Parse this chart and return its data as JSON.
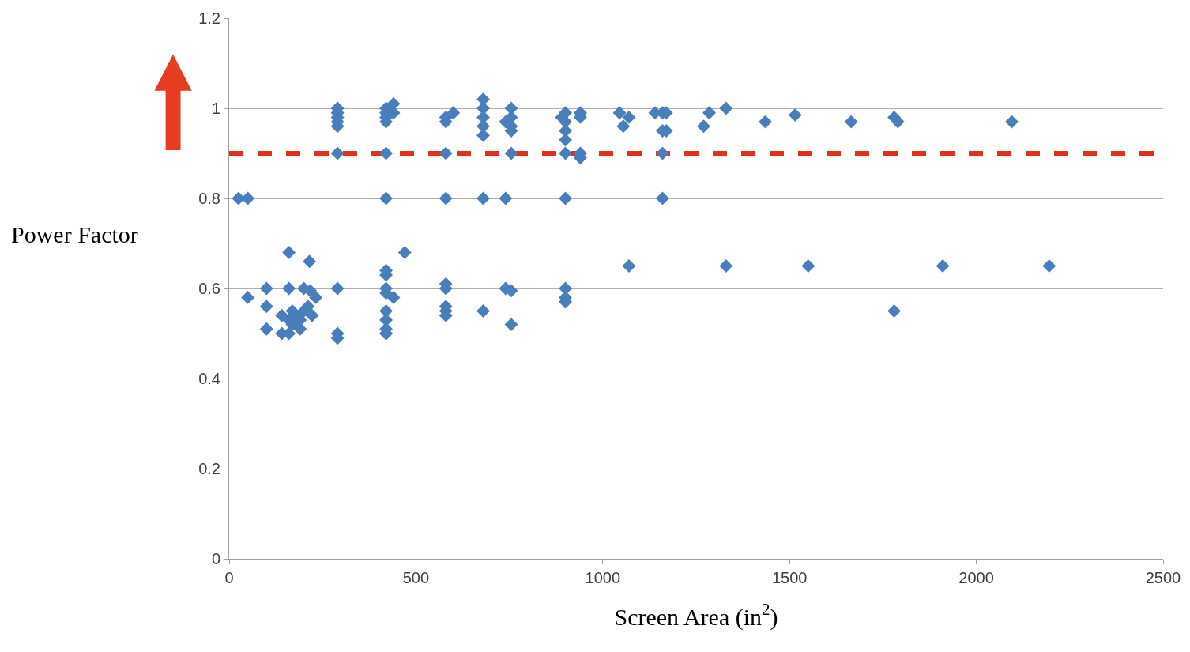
{
  "chart_data": {
    "type": "scatter",
    "xlabel": "Screen Area (in$^{2}$)",
    "ylabel": "Power Factor",
    "xlim": [
      0,
      2500
    ],
    "xticks": [
      0,
      500,
      1000,
      1500,
      2000,
      2500
    ],
    "ylim": [
      0,
      1.2
    ],
    "yticks": [
      0,
      0.2,
      0.4,
      0.6,
      0.8,
      1,
      1.2
    ],
    "grid": "y",
    "marker": "diamond",
    "ref_lines": [
      {
        "axis": "y",
        "value": 0.9,
        "color": "#e0301e",
        "line_style": "dashed"
      }
    ],
    "series": [
      {
        "color": "#4a7ebb",
        "x": [
          25,
          50,
          290,
          290,
          290,
          290,
          290,
          290,
          290,
          290,
          290,
          420,
          420,
          420,
          420,
          420,
          420,
          440,
          440,
          440,
          580,
          580,
          580,
          580,
          580,
          580,
          580,
          580,
          580,
          600,
          680,
          680,
          680,
          680,
          680,
          680,
          680,
          740,
          740,
          740,
          755,
          755,
          755,
          755,
          755,
          755,
          755,
          890,
          900,
          900,
          900,
          900,
          900,
          900,
          900,
          900,
          900,
          940,
          940,
          940,
          940,
          1045,
          1055,
          1070,
          1070,
          1140,
          1160,
          1160,
          1160,
          1160,
          1170,
          1170,
          1270,
          1285,
          1330,
          1330,
          1435,
          1515,
          1550,
          1665,
          1780,
          1780,
          1790,
          1910,
          2095,
          2195,
          50,
          100,
          100,
          100,
          160,
          215,
          160,
          200,
          217,
          232,
          141,
          160,
          169,
          179,
          190,
          200,
          211,
          222,
          141,
          160,
          169,
          190,
          420,
          420,
          420,
          420,
          420,
          420,
          420,
          420,
          420,
          470
        ],
        "values": [
          0.8,
          0.8,
          1.0,
          0.99,
          0.98,
          0.97,
          0.96,
          0.9,
          0.6,
          0.5,
          0.49,
          0.9,
          0.8,
          0.97,
          0.98,
          0.99,
          1.0,
          1.01,
          0.99,
          0.58,
          0.97,
          0.98,
          0.9,
          0.8,
          0.6,
          0.61,
          0.55,
          0.54,
          0.56,
          0.99,
          1.02,
          1.0,
          0.98,
          0.96,
          0.94,
          0.8,
          0.55,
          0.8,
          0.6,
          0.97,
          1.0,
          0.98,
          0.96,
          0.95,
          0.9,
          0.595,
          0.52,
          0.98,
          0.99,
          0.97,
          0.95,
          0.93,
          0.9,
          0.8,
          0.6,
          0.58,
          0.57,
          0.98,
          0.99,
          0.89,
          0.9,
          0.99,
          0.96,
          0.98,
          0.65,
          0.99,
          0.99,
          0.95,
          0.9,
          0.8,
          0.99,
          0.95,
          0.96,
          0.99,
          1.0,
          0.65,
          0.97,
          0.985,
          0.65,
          0.97,
          0.98,
          0.55,
          0.97,
          0.65,
          0.97,
          0.65,
          0.58,
          0.6,
          0.56,
          0.51,
          0.68,
          0.66,
          0.6,
          0.6,
          0.595,
          0.58,
          0.54,
          0.53,
          0.55,
          0.54,
          0.53,
          0.55,
          0.56,
          0.54,
          0.5,
          0.5,
          0.52,
          0.51,
          0.64,
          0.63,
          0.6,
          0.59,
          0.55,
          0.53,
          0.51,
          0.5,
          0.5,
          0.68
        ]
      }
    ]
  }
}
